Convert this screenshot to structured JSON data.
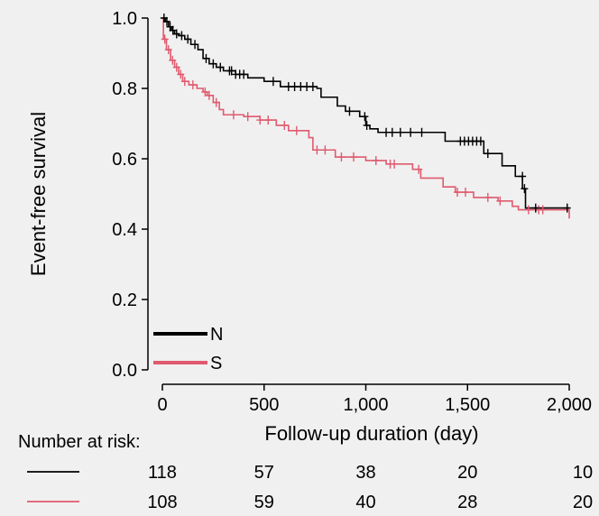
{
  "chart_data": {
    "type": "line",
    "subtype": "kaplan-meier",
    "title": "",
    "xlabel": "Follow-up duration (day)",
    "ylabel": "Event-free survival",
    "xlim": [
      0,
      2000
    ],
    "ylim": [
      0,
      1.0
    ],
    "x_ticks": [
      0,
      500,
      1000,
      1500,
      2000
    ],
    "x_tick_labels": [
      "0",
      "500",
      "1,000",
      "1,500",
      "2,000"
    ],
    "y_ticks": [
      0,
      0.2,
      0.4,
      0.6,
      0.8,
      1.0
    ],
    "y_tick_labels": [
      "0.0",
      "0.2",
      "0.4",
      "0.6",
      "0.8",
      "1.0"
    ],
    "grid": false,
    "legend_position": "bottom-left",
    "series": [
      {
        "name": "N",
        "color": "#000000",
        "steps": [
          [
            0,
            1.0
          ],
          [
            15,
            0.99
          ],
          [
            30,
            0.975
          ],
          [
            45,
            0.965
          ],
          [
            60,
            0.955
          ],
          [
            80,
            0.95
          ],
          [
            110,
            0.94
          ],
          [
            140,
            0.925
          ],
          [
            175,
            0.91
          ],
          [
            200,
            0.885
          ],
          [
            230,
            0.87
          ],
          [
            265,
            0.86
          ],
          [
            300,
            0.85
          ],
          [
            360,
            0.84
          ],
          [
            420,
            0.83
          ],
          [
            500,
            0.82
          ],
          [
            580,
            0.805
          ],
          [
            760,
            0.8
          ],
          [
            780,
            0.775
          ],
          [
            860,
            0.75
          ],
          [
            900,
            0.735
          ],
          [
            970,
            0.72
          ],
          [
            1000,
            0.695
          ],
          [
            1020,
            0.685
          ],
          [
            1060,
            0.675
          ],
          [
            1390,
            0.65
          ],
          [
            1580,
            0.615
          ],
          [
            1670,
            0.58
          ],
          [
            1735,
            0.55
          ],
          [
            1770,
            0.515
          ],
          [
            1785,
            0.46
          ],
          [
            2000,
            0.46
          ]
        ],
        "censored": [
          [
            8,
            1.0
          ],
          [
            22,
            0.99
          ],
          [
            38,
            0.975
          ],
          [
            52,
            0.965
          ],
          [
            70,
            0.955
          ],
          [
            95,
            0.95
          ],
          [
            125,
            0.94
          ],
          [
            160,
            0.925
          ],
          [
            215,
            0.885
          ],
          [
            250,
            0.87
          ],
          [
            285,
            0.86
          ],
          [
            330,
            0.85
          ],
          [
            340,
            0.85
          ],
          [
            360,
            0.84
          ],
          [
            380,
            0.84
          ],
          [
            400,
            0.84
          ],
          [
            545,
            0.82
          ],
          [
            620,
            0.805
          ],
          [
            650,
            0.805
          ],
          [
            680,
            0.805
          ],
          [
            710,
            0.805
          ],
          [
            740,
            0.805
          ],
          [
            920,
            0.735
          ],
          [
            995,
            0.72
          ],
          [
            1005,
            0.695
          ],
          [
            1100,
            0.675
          ],
          [
            1130,
            0.675
          ],
          [
            1170,
            0.675
          ],
          [
            1220,
            0.675
          ],
          [
            1275,
            0.675
          ],
          [
            1465,
            0.65
          ],
          [
            1485,
            0.65
          ],
          [
            1505,
            0.65
          ],
          [
            1525,
            0.65
          ],
          [
            1545,
            0.65
          ],
          [
            1565,
            0.65
          ],
          [
            1600,
            0.615
          ],
          [
            1770,
            0.55
          ],
          [
            1780,
            0.515
          ],
          [
            1835,
            0.46
          ],
          [
            1990,
            0.46
          ]
        ]
      },
      {
        "name": "S",
        "color": "#e05a6e",
        "steps": [
          [
            0,
            1.0
          ],
          [
            5,
            0.94
          ],
          [
            20,
            0.91
          ],
          [
            40,
            0.88
          ],
          [
            60,
            0.86
          ],
          [
            80,
            0.84
          ],
          [
            100,
            0.82
          ],
          [
            130,
            0.81
          ],
          [
            170,
            0.8
          ],
          [
            200,
            0.79
          ],
          [
            220,
            0.78
          ],
          [
            250,
            0.76
          ],
          [
            280,
            0.74
          ],
          [
            300,
            0.725
          ],
          [
            400,
            0.72
          ],
          [
            480,
            0.71
          ],
          [
            560,
            0.695
          ],
          [
            620,
            0.68
          ],
          [
            720,
            0.66
          ],
          [
            740,
            0.625
          ],
          [
            850,
            0.605
          ],
          [
            1000,
            0.595
          ],
          [
            1100,
            0.585
          ],
          [
            1230,
            0.57
          ],
          [
            1270,
            0.545
          ],
          [
            1380,
            0.52
          ],
          [
            1440,
            0.505
          ],
          [
            1530,
            0.49
          ],
          [
            1650,
            0.48
          ],
          [
            1720,
            0.465
          ],
          [
            1750,
            0.455
          ],
          [
            2000,
            0.43
          ]
        ],
        "censored": [
          [
            12,
            0.94
          ],
          [
            30,
            0.91
          ],
          [
            50,
            0.88
          ],
          [
            70,
            0.86
          ],
          [
            90,
            0.84
          ],
          [
            110,
            0.82
          ],
          [
            150,
            0.81
          ],
          [
            210,
            0.79
          ],
          [
            230,
            0.78
          ],
          [
            265,
            0.76
          ],
          [
            350,
            0.725
          ],
          [
            420,
            0.72
          ],
          [
            480,
            0.71
          ],
          [
            520,
            0.71
          ],
          [
            600,
            0.695
          ],
          [
            660,
            0.68
          ],
          [
            760,
            0.625
          ],
          [
            800,
            0.625
          ],
          [
            880,
            0.605
          ],
          [
            940,
            0.605
          ],
          [
            1050,
            0.595
          ],
          [
            1120,
            0.585
          ],
          [
            1140,
            0.585
          ],
          [
            1260,
            0.57
          ],
          [
            1450,
            0.505
          ],
          [
            1490,
            0.505
          ],
          [
            1600,
            0.49
          ],
          [
            1660,
            0.48
          ],
          [
            1800,
            0.455
          ],
          [
            1850,
            0.455
          ],
          [
            1870,
            0.455
          ]
        ]
      }
    ],
    "risk_table": {
      "label": "Number at risk:",
      "times": [
        0,
        500,
        1000,
        1500,
        2000
      ],
      "rows": [
        {
          "series": "N",
          "values": [
            "118",
            "57",
            "38",
            "20",
            "10"
          ]
        },
        {
          "series": "S",
          "values": [
            "108",
            "59",
            "40",
            "28",
            "20"
          ]
        }
      ]
    }
  }
}
